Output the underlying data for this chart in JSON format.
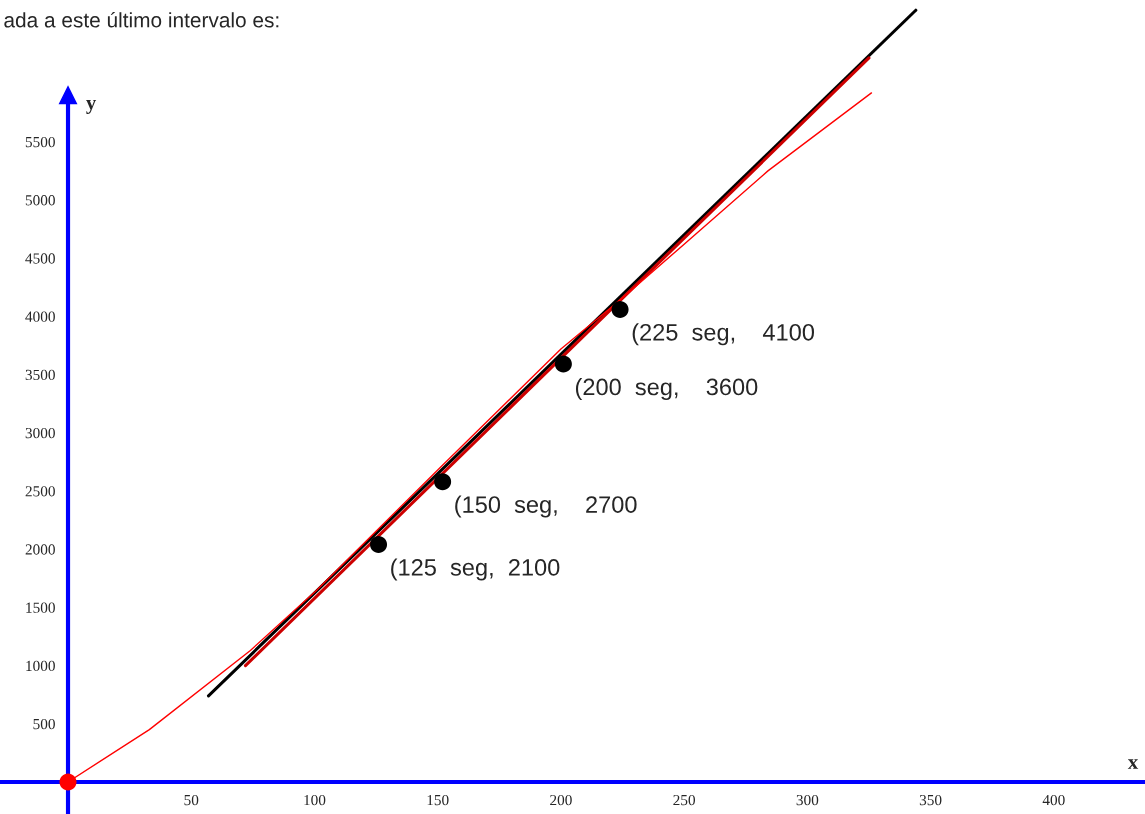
{
  "chart_data": {
    "type": "line",
    "title": "ada a este último intervalo es:",
    "xlabel": "x",
    "ylabel": "y",
    "xlim": [
      -27.6,
      437
    ],
    "ylim": [
      -275,
      6718
    ],
    "xticks": [
      50,
      100,
      150,
      200,
      250,
      300,
      350,
      400
    ],
    "yticks": [
      500,
      1000,
      1500,
      2000,
      2500,
      3000,
      3500,
      4000,
      4500,
      5000,
      5500
    ],
    "grid": false,
    "legend": false,
    "series": [
      {
        "color": "#000000",
        "x": [
          57,
          344
        ],
        "values": [
          740,
          6630
        ]
      },
      {
        "color": "#cc0000",
        "x": [
          72,
          325
        ],
        "values": [
          1000,
          6220
        ]
      },
      {
        "color": "#ff0000",
        "x": [
          0,
          33,
          74,
          101,
          150,
          200,
          224,
          250,
          284,
          326
        ],
        "values": [
          0,
          450,
          1130,
          1650,
          2680,
          3720,
          4140,
          4620,
          5250,
          5920
        ]
      },
      {
        "type": "scatter",
        "color": "#000000",
        "x": [
          126,
          152,
          201,
          224
        ],
        "values": [
          2040,
          2580,
          3590,
          4060
        ]
      },
      {
        "type": "scatter",
        "color": "#ff0000",
        "x": [
          0
        ],
        "values": [
          0
        ]
      }
    ],
    "ref_lines": [
      {
        "axis": "y",
        "value": 0,
        "color": "#0000ff"
      }
    ],
    "annotations": [
      {
        "text": "(125  seg,  2100",
        "x": 126,
        "y": 2040
      },
      {
        "text": "(150  seg,    2700",
        "x": 152,
        "y": 2580
      },
      {
        "text": "(200  seg,    3600",
        "x": 201,
        "y": 3590
      },
      {
        "text": "(225  seg,    4100",
        "x": 224,
        "y": 4060
      }
    ]
  }
}
